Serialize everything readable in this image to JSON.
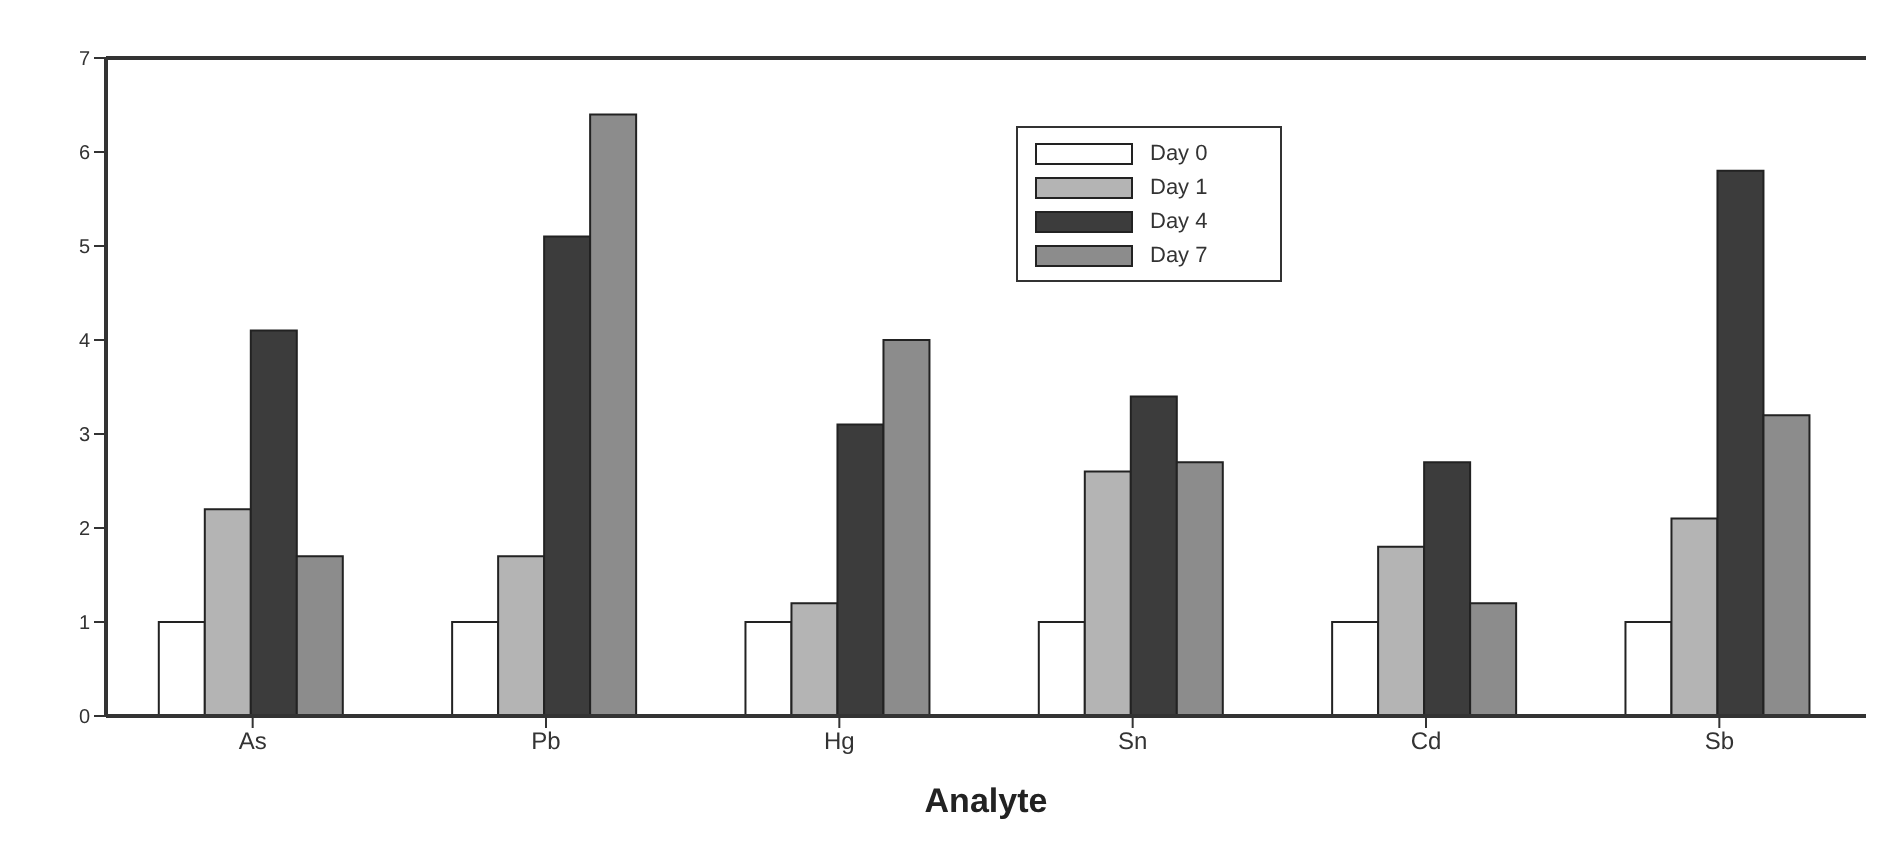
{
  "chart_data": {
    "type": "bar",
    "xlabel": "Analyte",
    "categories": [
      "As",
      "Pb",
      "Hg",
      "Sn",
      "Cd",
      "Sb"
    ],
    "series": [
      {
        "name": "Day 0",
        "color": "#ffffff",
        "values": [
          1,
          1,
          1,
          1,
          1,
          1
        ]
      },
      {
        "name": "Day 1",
        "color": "#b4b4b4",
        "values": [
          2.2,
          1.7,
          1.2,
          2.6,
          1.8,
          2.1
        ]
      },
      {
        "name": "Day 4",
        "color": "#3c3c3c",
        "values": [
          4.1,
          5.1,
          3.1,
          3.4,
          2.7,
          5.8
        ]
      },
      {
        "name": "Day 7",
        "color": "#8c8c8c",
        "values": [
          1.7,
          6.4,
          4.0,
          2.7,
          1.2,
          3.2
        ]
      }
    ],
    "ylim": [
      0,
      7
    ],
    "yticks": [
      0,
      1,
      2,
      3,
      4,
      5,
      6,
      7
    ],
    "grid": false,
    "legend": "top"
  }
}
